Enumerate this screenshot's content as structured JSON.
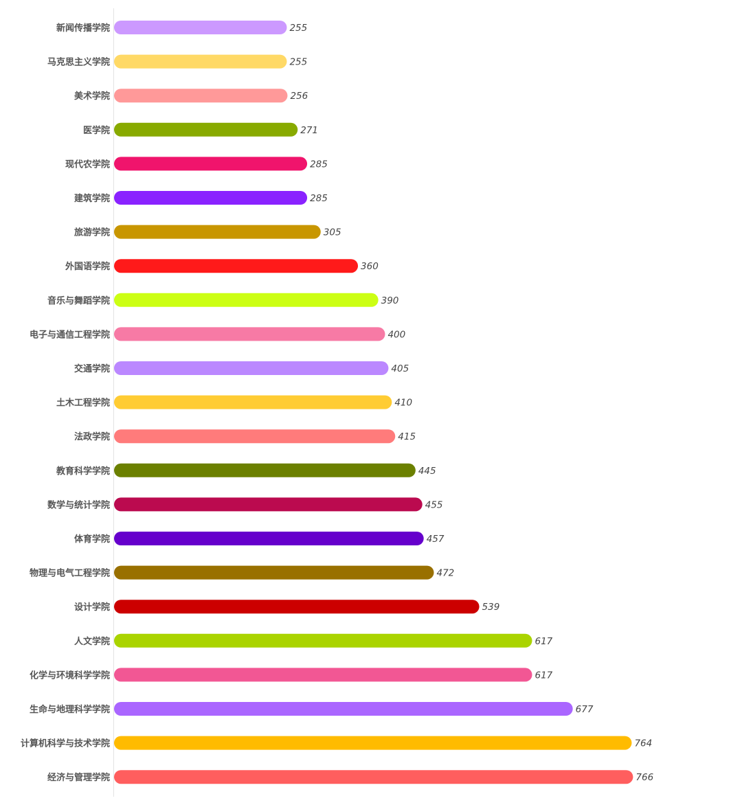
{
  "chart_data": {
    "type": "bar",
    "orientation": "horizontal",
    "title": "",
    "xlabel": "",
    "ylabel": "",
    "xlim": [
      0,
      766
    ],
    "grid": false,
    "categories": [
      "新闻传播学院",
      "马克思主义学院",
      "美术学院",
      "医学院",
      "现代农学院",
      "建筑学院",
      "旅游学院",
      "外国语学院",
      "音乐与舞蹈学院",
      "电子与通信工程学院",
      "交通学院",
      "土木工程学院",
      "法政学院",
      "教育科学学院",
      "数学与统计学院",
      "体育学院",
      "物理与电气工程学院",
      "设计学院",
      "人文学院",
      "化学与环境科学学院",
      "生命与地理科学学院",
      "计算机科学与技术学院",
      "经济与管理学院"
    ],
    "values": [
      255,
      255,
      256,
      271,
      285,
      285,
      305,
      360,
      390,
      400,
      405,
      410,
      415,
      445,
      455,
      457,
      472,
      539,
      617,
      617,
      677,
      764,
      766
    ],
    "colors": [
      "#cc99ff",
      "#ffd966",
      "#ff9999",
      "#88aa00",
      "#f0146c",
      "#8a22ff",
      "#c89600",
      "#ff1a1a",
      "#ccff14",
      "#f77aa5",
      "#bb88ff",
      "#ffcc33",
      "#ff7b7b",
      "#6b8000",
      "#bb0a4f",
      "#6600cc",
      "#997000",
      "#cc0000",
      "#aad400",
      "#f25794",
      "#aa66ff",
      "#ffbb00",
      "#ff5e5e"
    ]
  }
}
